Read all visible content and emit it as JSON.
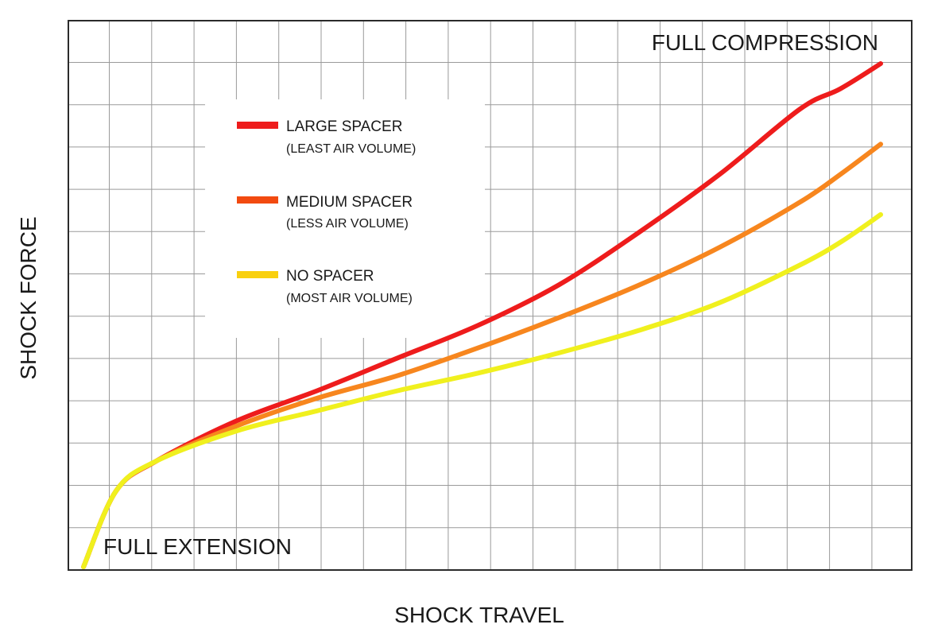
{
  "chart_data": {
    "type": "line",
    "xlabel": "SHOCK TRAVEL",
    "ylabel": "SHOCK FORCE",
    "xlim": [
      0,
      100
    ],
    "ylim": [
      0,
      100
    ],
    "grid": true,
    "legend_position": "upper-left",
    "annotations": {
      "top_right": "FULL COMPRESSION",
      "bottom_left": "FULL EXTENSION"
    },
    "x": [
      1,
      5,
      10,
      20,
      30,
      40,
      50,
      60,
      70,
      80,
      90,
      95,
      100
    ],
    "series": [
      {
        "name": "LARGE SPACER",
        "note": "(LEAST AIR VOLUME)",
        "color": "#ee1c1c",
        "values": [
          0,
          15,
          21,
          29,
          35,
          41.5,
          48,
          56,
          66.5,
          78,
          91,
          95,
          100
        ]
      },
      {
        "name": "MEDIUM SPACER",
        "note": "(LESS AIR VOLUME)",
        "color": "#f7861e",
        "values": [
          0,
          15,
          21,
          28,
          33.5,
          38,
          43.5,
          49.5,
          56,
          63.5,
          72.5,
          78,
          84
        ]
      },
      {
        "name": "NO SPACER",
        "note": "(MOST AIR VOLUME)",
        "color": "#f0f01e",
        "values": [
          0,
          15,
          21,
          27,
          31,
          35,
          38.5,
          42.5,
          47,
          52.5,
          60,
          64.5,
          70
        ]
      }
    ],
    "legend_swatch_colors": [
      "#ee1c1c",
      "#f24a10",
      "#f9d00e"
    ]
  }
}
